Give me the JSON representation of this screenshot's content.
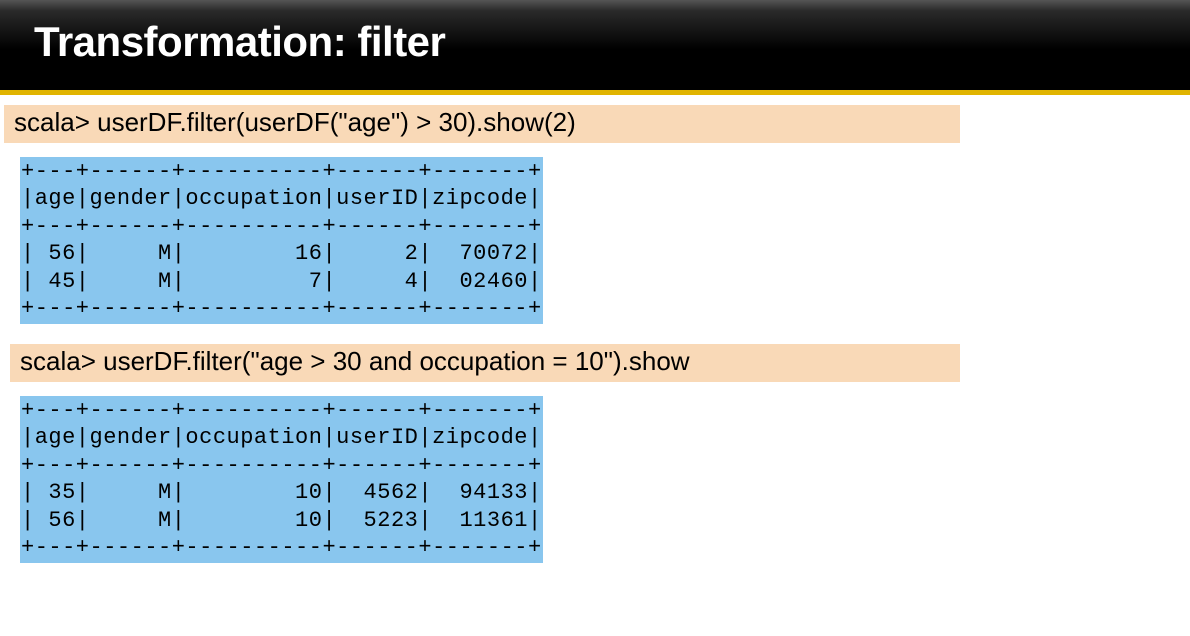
{
  "title": "Transformation: filter",
  "blocks": [
    {
      "prompt": "scala> userDF.filter(userDF(\"age\") > 30).show(2)",
      "columns": [
        "age",
        "gender",
        "occupation",
        "userID",
        "zipcode"
      ],
      "widths": [
        3,
        6,
        10,
        6,
        7
      ],
      "rows": [
        [
          "56",
          "M",
          "16",
          "2",
          "70072"
        ],
        [
          "45",
          "M",
          "7",
          "4",
          "02460"
        ]
      ]
    },
    {
      "prompt": "scala> userDF.filter(\"age > 30 and occupation = 10\").show",
      "columns": [
        "age",
        "gender",
        "occupation",
        "userID",
        "zipcode"
      ],
      "widths": [
        3,
        6,
        10,
        6,
        7
      ],
      "rows": [
        [
          "35",
          "M",
          "10",
          "4562",
          "94133"
        ],
        [
          "56",
          "M",
          "10",
          "5223",
          "11361"
        ]
      ]
    }
  ],
  "colors": {
    "codebar_bg": "#f9d9b7",
    "table_bg": "#89c6ee",
    "accent": "#e0b400"
  }
}
